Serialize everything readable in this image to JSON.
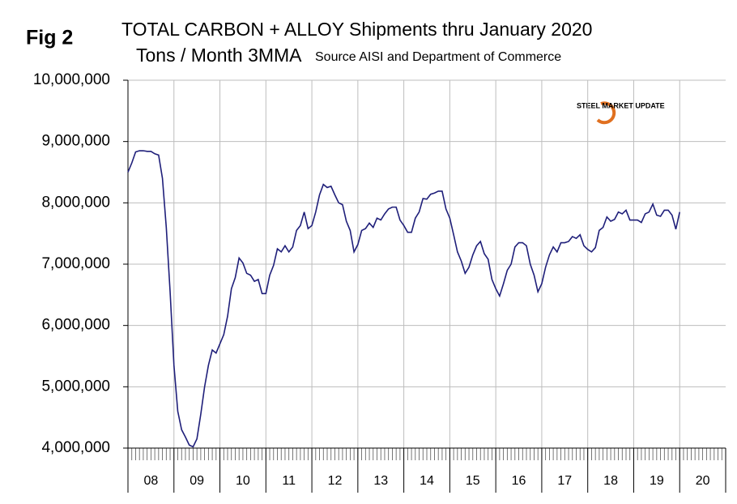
{
  "chart_data": {
    "type": "line",
    "fig_label": "Fig 2",
    "title": "TOTAL CARBON + ALLOY Shipments thru January 2020",
    "subtitle": "Tons / Month 3MMA",
    "source": "Source AISI and Department of Commerce",
    "logo": "STEEL MARKET UPDATE",
    "xtick_labels": [
      "08",
      "09",
      "10",
      "11",
      "12",
      "13",
      "14",
      "15",
      "16",
      "17",
      "18",
      "19",
      "20"
    ],
    "color": "#1f1f7a",
    "grid": true,
    "ylim": [
      4000000,
      10000000
    ],
    "yticks": [
      {
        "value": 4000000,
        "label": "4,000,000"
      },
      {
        "value": 5000000,
        "label": "5,000,000"
      },
      {
        "value": 6000000,
        "label": "6,000,000"
      },
      {
        "value": 7000000,
        "label": "7,000,000"
      },
      {
        "value": 8000000,
        "label": "8,000,000"
      },
      {
        "value": 9000000,
        "label": "9,000,000"
      },
      {
        "value": 10000000,
        "label": "10,000,000"
      }
    ],
    "values": [
      8500000,
      8650000,
      8830000,
      8850000,
      8850000,
      8840000,
      8840000,
      8800000,
      8780000,
      8400000,
      7600000,
      6550000,
      5350000,
      4600000,
      4300000,
      4180000,
      4050000,
      4020000,
      4150000,
      4550000,
      5000000,
      5350000,
      5600000,
      5550000,
      5700000,
      5850000,
      6150000,
      6600000,
      6780000,
      7100000,
      7020000,
      6850000,
      6820000,
      6720000,
      6750000,
      6520000,
      6520000,
      6820000,
      6980000,
      7250000,
      7200000,
      7300000,
      7200000,
      7280000,
      7550000,
      7630000,
      7850000,
      7580000,
      7630000,
      7850000,
      8130000,
      8300000,
      8250000,
      8270000,
      8130000,
      8000000,
      7970000,
      7700000,
      7550000,
      7200000,
      7320000,
      7550000,
      7580000,
      7670000,
      7600000,
      7750000,
      7720000,
      7820000,
      7900000,
      7930000,
      7930000,
      7720000,
      7630000,
      7520000,
      7520000,
      7750000,
      7850000,
      8070000,
      8060000,
      8140000,
      8160000,
      8190000,
      8190000,
      7900000,
      7750000,
      7480000,
      7200000,
      7050000,
      6850000,
      6950000,
      7150000,
      7300000,
      7370000,
      7170000,
      7080000,
      6750000,
      6600000,
      6480000,
      6680000,
      6900000,
      7000000,
      7280000,
      7350000,
      7350000,
      7300000,
      7000000,
      6820000,
      6550000,
      6680000,
      6950000,
      7150000,
      7280000,
      7200000,
      7350000,
      7350000,
      7370000,
      7450000,
      7420000,
      7480000,
      7300000,
      7240000,
      7200000,
      7270000,
      7550000,
      7600000,
      7770000,
      7700000,
      7730000,
      7850000,
      7820000,
      7880000,
      7720000,
      7720000,
      7720000,
      7680000,
      7820000,
      7850000,
      7980000,
      7800000,
      7780000,
      7880000,
      7880000,
      7800000,
      7570000,
      7850000
    ]
  }
}
